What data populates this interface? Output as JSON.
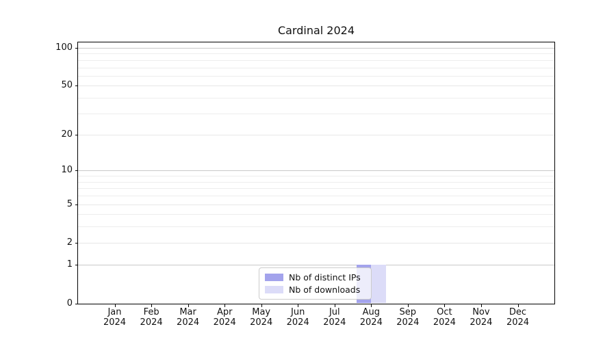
{
  "chart_data": {
    "type": "bar",
    "title": "Cardinal 2024",
    "categories": [
      "Jan 2024",
      "Feb 2024",
      "Mar 2024",
      "Apr 2024",
      "May 2024",
      "Jun 2024",
      "Jul 2024",
      "Aug 2024",
      "Sep 2024",
      "Oct 2024",
      "Nov 2024",
      "Dec 2024"
    ],
    "series": [
      {
        "name": "Nb of distinct IPs",
        "color": "#a3a3ec",
        "values": [
          0,
          0,
          0,
          0,
          0,
          0,
          0,
          1,
          0,
          0,
          0,
          0
        ]
      },
      {
        "name": "Nb of downloads",
        "color": "#dcdcf8",
        "values": [
          0,
          0,
          0,
          0,
          0,
          0,
          0,
          1,
          0,
          0,
          0,
          0
        ]
      }
    ],
    "xlabel": "",
    "ylabel": "",
    "yscale": "log1p",
    "ylim": [
      0,
      100
    ],
    "y_major_ticks": [
      0,
      1,
      2,
      5,
      10,
      20,
      50,
      100
    ],
    "y_minor_gridlines": [
      3,
      4,
      6,
      7,
      8,
      9,
      30,
      40,
      60,
      70,
      80,
      90
    ],
    "grid": "horizontal-only",
    "legend_position": "lower center",
    "colors": {
      "emphasis_gridline": "#c8c8c8",
      "major_gridline": "#e7e7e7",
      "minor_gridline": "#ededed",
      "axis": "#000000",
      "background": "#ffffff"
    }
  }
}
